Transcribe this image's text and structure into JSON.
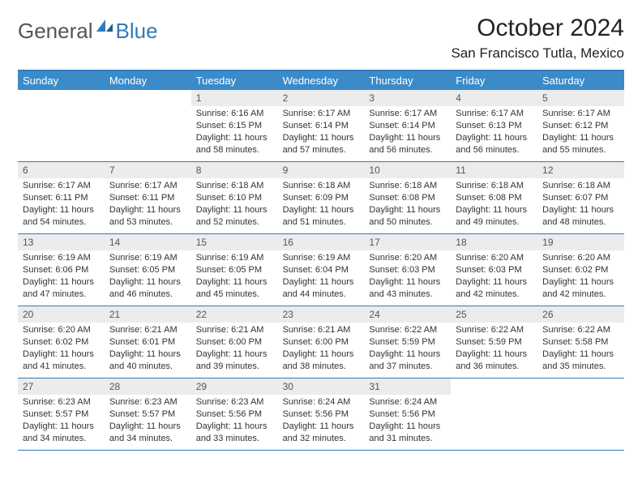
{
  "brand": {
    "text1": "General",
    "text2": "Blue"
  },
  "title": "October 2024",
  "location": "San Francisco Tutla, Mexico",
  "colors": {
    "header_bg": "#3b8bc9",
    "border": "#2f7bbf",
    "daynum_bg": "#ececec",
    "text": "#222222"
  },
  "day_names": [
    "Sunday",
    "Monday",
    "Tuesday",
    "Wednesday",
    "Thursday",
    "Friday",
    "Saturday"
  ],
  "weeks": [
    [
      null,
      null,
      {
        "n": "1",
        "sr": "6:16 AM",
        "ss": "6:15 PM",
        "dl": "11 hours and 58 minutes."
      },
      {
        "n": "2",
        "sr": "6:17 AM",
        "ss": "6:14 PM",
        "dl": "11 hours and 57 minutes."
      },
      {
        "n": "3",
        "sr": "6:17 AM",
        "ss": "6:14 PM",
        "dl": "11 hours and 56 minutes."
      },
      {
        "n": "4",
        "sr": "6:17 AM",
        "ss": "6:13 PM",
        "dl": "11 hours and 56 minutes."
      },
      {
        "n": "5",
        "sr": "6:17 AM",
        "ss": "6:12 PM",
        "dl": "11 hours and 55 minutes."
      }
    ],
    [
      {
        "n": "6",
        "sr": "6:17 AM",
        "ss": "6:11 PM",
        "dl": "11 hours and 54 minutes."
      },
      {
        "n": "7",
        "sr": "6:17 AM",
        "ss": "6:11 PM",
        "dl": "11 hours and 53 minutes."
      },
      {
        "n": "8",
        "sr": "6:18 AM",
        "ss": "6:10 PM",
        "dl": "11 hours and 52 minutes."
      },
      {
        "n": "9",
        "sr": "6:18 AM",
        "ss": "6:09 PM",
        "dl": "11 hours and 51 minutes."
      },
      {
        "n": "10",
        "sr": "6:18 AM",
        "ss": "6:08 PM",
        "dl": "11 hours and 50 minutes."
      },
      {
        "n": "11",
        "sr": "6:18 AM",
        "ss": "6:08 PM",
        "dl": "11 hours and 49 minutes."
      },
      {
        "n": "12",
        "sr": "6:18 AM",
        "ss": "6:07 PM",
        "dl": "11 hours and 48 minutes."
      }
    ],
    [
      {
        "n": "13",
        "sr": "6:19 AM",
        "ss": "6:06 PM",
        "dl": "11 hours and 47 minutes."
      },
      {
        "n": "14",
        "sr": "6:19 AM",
        "ss": "6:05 PM",
        "dl": "11 hours and 46 minutes."
      },
      {
        "n": "15",
        "sr": "6:19 AM",
        "ss": "6:05 PM",
        "dl": "11 hours and 45 minutes."
      },
      {
        "n": "16",
        "sr": "6:19 AM",
        "ss": "6:04 PM",
        "dl": "11 hours and 44 minutes."
      },
      {
        "n": "17",
        "sr": "6:20 AM",
        "ss": "6:03 PM",
        "dl": "11 hours and 43 minutes."
      },
      {
        "n": "18",
        "sr": "6:20 AM",
        "ss": "6:03 PM",
        "dl": "11 hours and 42 minutes."
      },
      {
        "n": "19",
        "sr": "6:20 AM",
        "ss": "6:02 PM",
        "dl": "11 hours and 42 minutes."
      }
    ],
    [
      {
        "n": "20",
        "sr": "6:20 AM",
        "ss": "6:02 PM",
        "dl": "11 hours and 41 minutes."
      },
      {
        "n": "21",
        "sr": "6:21 AM",
        "ss": "6:01 PM",
        "dl": "11 hours and 40 minutes."
      },
      {
        "n": "22",
        "sr": "6:21 AM",
        "ss": "6:00 PM",
        "dl": "11 hours and 39 minutes."
      },
      {
        "n": "23",
        "sr": "6:21 AM",
        "ss": "6:00 PM",
        "dl": "11 hours and 38 minutes."
      },
      {
        "n": "24",
        "sr": "6:22 AM",
        "ss": "5:59 PM",
        "dl": "11 hours and 37 minutes."
      },
      {
        "n": "25",
        "sr": "6:22 AM",
        "ss": "5:59 PM",
        "dl": "11 hours and 36 minutes."
      },
      {
        "n": "26",
        "sr": "6:22 AM",
        "ss": "5:58 PM",
        "dl": "11 hours and 35 minutes."
      }
    ],
    [
      {
        "n": "27",
        "sr": "6:23 AM",
        "ss": "5:57 PM",
        "dl": "11 hours and 34 minutes."
      },
      {
        "n": "28",
        "sr": "6:23 AM",
        "ss": "5:57 PM",
        "dl": "11 hours and 34 minutes."
      },
      {
        "n": "29",
        "sr": "6:23 AM",
        "ss": "5:56 PM",
        "dl": "11 hours and 33 minutes."
      },
      {
        "n": "30",
        "sr": "6:24 AM",
        "ss": "5:56 PM",
        "dl": "11 hours and 32 minutes."
      },
      {
        "n": "31",
        "sr": "6:24 AM",
        "ss": "5:56 PM",
        "dl": "11 hours and 31 minutes."
      },
      null,
      null
    ]
  ],
  "labels": {
    "sunrise": "Sunrise:",
    "sunset": "Sunset:",
    "daylight": "Daylight:"
  }
}
